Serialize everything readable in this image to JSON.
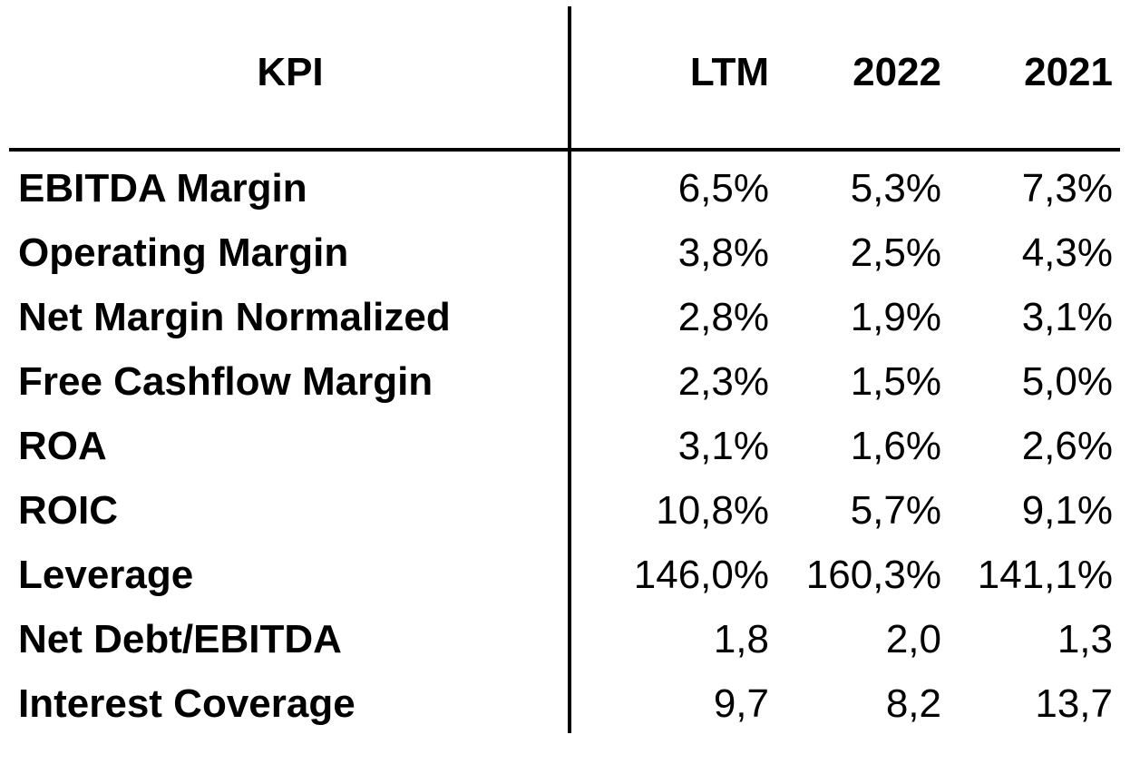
{
  "table": {
    "headers": {
      "kpi": "KPI",
      "col1": "LTM",
      "col2": "2022",
      "col3": "2021"
    },
    "rows": [
      {
        "label": "EBITDA Margin",
        "ltm": "6,5%",
        "y2022": "5,3%",
        "y2021": "7,3%"
      },
      {
        "label": "Operating Margin",
        "ltm": "3,8%",
        "y2022": "2,5%",
        "y2021": "4,3%"
      },
      {
        "label": "Net Margin Normalized",
        "ltm": "2,8%",
        "y2022": "1,9%",
        "y2021": "3,1%"
      },
      {
        "label": "Free Cashflow Margin",
        "ltm": "2,3%",
        "y2022": "1,5%",
        "y2021": "5,0%"
      },
      {
        "label": "ROA",
        "ltm": "3,1%",
        "y2022": "1,6%",
        "y2021": "2,6%"
      },
      {
        "label": "ROIC",
        "ltm": "10,8%",
        "y2022": "5,7%",
        "y2021": "9,1%"
      },
      {
        "label": "Leverage",
        "ltm": "146,0%",
        "y2022": "160,3%",
        "y2021": "141,1%"
      },
      {
        "label": "Net Debt/EBITDA",
        "ltm": "1,8",
        "y2022": "2,0",
        "y2021": "1,3"
      },
      {
        "label": "Interest Coverage",
        "ltm": "9,7",
        "y2022": "8,2",
        "y2021": "13,7"
      }
    ]
  }
}
